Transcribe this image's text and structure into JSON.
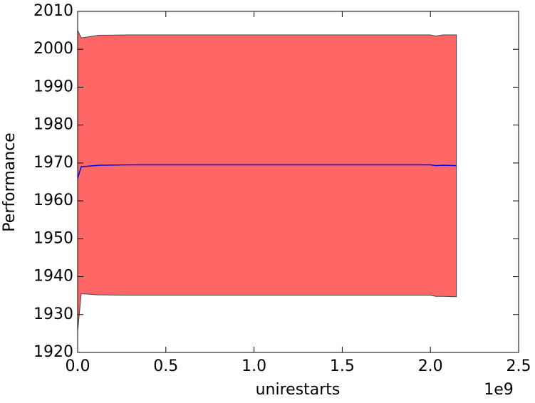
{
  "chart_data": {
    "type": "line",
    "x_label": "unirestarts",
    "y_label": "Performance",
    "x_offset_label": "1e9",
    "x": [
      0,
      20000000,
      120000000,
      300000000,
      1000000000,
      2000000000,
      2030000000,
      2070000000,
      2147000000
    ],
    "values": [
      1966,
      1969,
      1969.4,
      1969.5,
      1969.5,
      1969.5,
      1969.3,
      1969.4,
      1969.3
    ],
    "color": "#0000ff",
    "band": {
      "upper": [
        2005,
        2003,
        2003.7,
        2003.8,
        2003.8,
        2003.8,
        2003.5,
        2003.8,
        2003.8
      ],
      "lower": [
        1925.5,
        1935.5,
        1935.2,
        1935.1,
        1935.1,
        1935.1,
        1934.8,
        1934.8,
        1934.7
      ],
      "color": "#ff6666"
    },
    "xlim": [
      0,
      2500000000
    ],
    "xticks": [
      {
        "value": 0,
        "label": "0.0"
      },
      {
        "value": 500000000,
        "label": "0.5"
      },
      {
        "value": 1000000000,
        "label": "1.0"
      },
      {
        "value": 1500000000,
        "label": "1.5"
      },
      {
        "value": 2000000000,
        "label": "2.0"
      },
      {
        "value": 2500000000,
        "label": "2.5"
      }
    ],
    "ylim": [
      1920,
      2010
    ],
    "yticks": [
      1920,
      1930,
      1940,
      1950,
      1960,
      1970,
      1980,
      1990,
      2000,
      2010
    ]
  }
}
